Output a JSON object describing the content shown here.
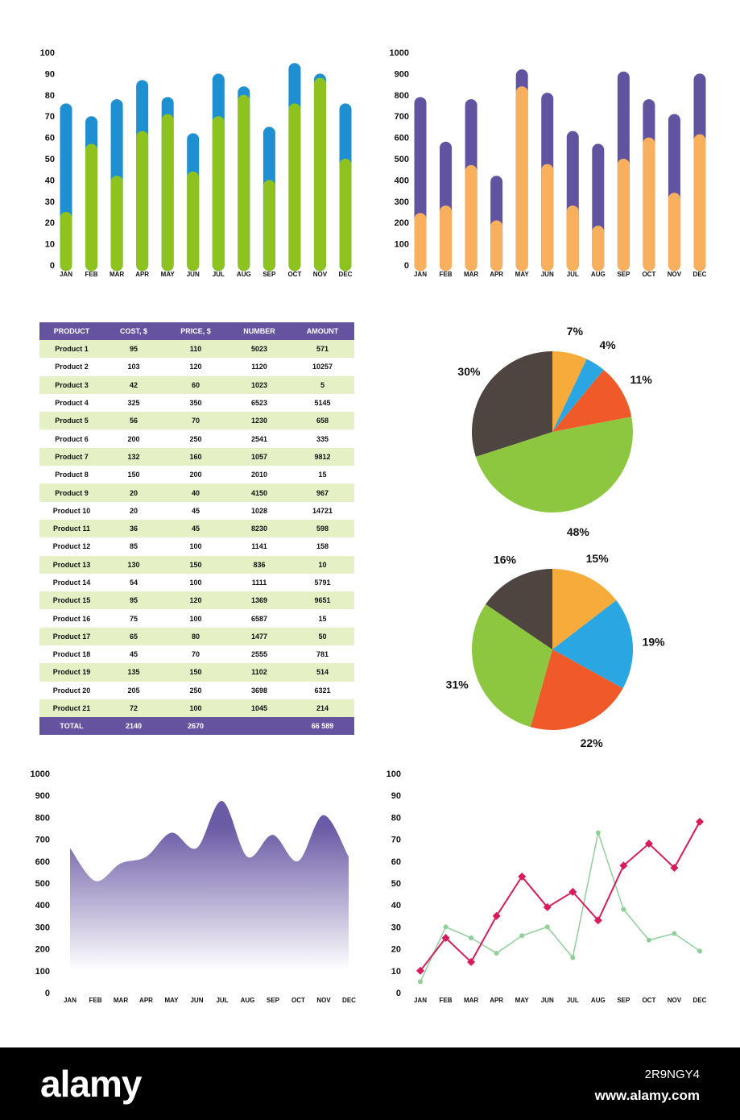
{
  "chart_data": [
    {
      "id": "bar1",
      "type": "bar",
      "stacked": "overlay",
      "categories": [
        "JAN",
        "FEB",
        "MAR",
        "APR",
        "MAY",
        "JUN",
        "JUL",
        "AUG",
        "SEP",
        "OCT",
        "NOV",
        "DEC"
      ],
      "series": [
        {
          "color": "#1e8fd1",
          "values": [
            76,
            70,
            78,
            87,
            79,
            62,
            90,
            84,
            65,
            95,
            90,
            76
          ]
        },
        {
          "color": "#8dc21f",
          "values": [
            25,
            57,
            42,
            63,
            71,
            44,
            70,
            80,
            40,
            76,
            88,
            50
          ]
        }
      ],
      "yticks": [
        0,
        10,
        20,
        30,
        40,
        50,
        60,
        70,
        80,
        90,
        100
      ],
      "ylim": [
        0,
        100
      ]
    },
    {
      "id": "bar2",
      "type": "bar",
      "stacked": "overlay",
      "categories": [
        "JAN",
        "FEB",
        "MAR",
        "APR",
        "MAY",
        "JUN",
        "JUL",
        "AUG",
        "SEP",
        "OCT",
        "NOV",
        "DEC"
      ],
      "series": [
        {
          "color": "#6153a0",
          "values": [
            790,
            580,
            780,
            420,
            920,
            810,
            630,
            570,
            910,
            780,
            710,
            900
          ]
        },
        {
          "color": "#f9b05d",
          "values": [
            245,
            280,
            470,
            210,
            840,
            475,
            280,
            185,
            500,
            600,
            340,
            615
          ]
        }
      ],
      "yticks": [
        0,
        100,
        200,
        300,
        400,
        500,
        600,
        700,
        800,
        900,
        1000
      ],
      "ylim": [
        0,
        1000
      ]
    },
    {
      "id": "table",
      "type": "table",
      "columns": [
        "PRODUCT",
        "COST, $",
        "PRICE, $",
        "NUMBER",
        "AMOUNT"
      ],
      "rows": [
        [
          "Product 1",
          "95",
          "110",
          "5023",
          "571"
        ],
        [
          "Product 2",
          "103",
          "120",
          "1120",
          "10257"
        ],
        [
          "Product 3",
          "42",
          "60",
          "1023",
          "5"
        ],
        [
          "Product 4",
          "325",
          "350",
          "6523",
          "5145"
        ],
        [
          "Product 5",
          "56",
          "70",
          "1230",
          "658"
        ],
        [
          "Product 6",
          "200",
          "250",
          "2541",
          "335"
        ],
        [
          "Product 7",
          "132",
          "160",
          "1057",
          "9812"
        ],
        [
          "Product 8",
          "150",
          "200",
          "2010",
          "15"
        ],
        [
          "Product 9",
          "20",
          "40",
          "4150",
          "967"
        ],
        [
          "Product 10",
          "20",
          "45",
          "1028",
          "14721"
        ],
        [
          "Product 11",
          "36",
          "45",
          "8230",
          "598"
        ],
        [
          "Product 12",
          "85",
          "100",
          "1141",
          "158"
        ],
        [
          "Product 13",
          "130",
          "150",
          "836",
          "10"
        ],
        [
          "Product 14",
          "54",
          "100",
          "1111",
          "5791"
        ],
        [
          "Product 15",
          "95",
          "120",
          "1369",
          "9651"
        ],
        [
          "Product 16",
          "75",
          "100",
          "6587",
          "15"
        ],
        [
          "Product 17",
          "65",
          "80",
          "1477",
          "50"
        ],
        [
          "Product 18",
          "45",
          "70",
          "2555",
          "781"
        ],
        [
          "Product 19",
          "135",
          "150",
          "1102",
          "514"
        ],
        [
          "Product 20",
          "205",
          "250",
          "3698",
          "6321"
        ],
        [
          "Product 21",
          "72",
          "100",
          "1045",
          "214"
        ]
      ],
      "total": [
        "TOTAL",
        "2140",
        "2670",
        "",
        "66 589"
      ]
    },
    {
      "id": "pie1",
      "type": "pie",
      "slices": [
        {
          "label": "7%",
          "value": 7,
          "color": "#f7ab3b"
        },
        {
          "label": "4%",
          "value": 4,
          "color": "#2aa6e2"
        },
        {
          "label": "11%",
          "value": 11,
          "color": "#f05a28"
        },
        {
          "label": "48%",
          "value": 48,
          "color": "#8dc63f"
        },
        {
          "label": "30%",
          "value": 30,
          "color": "#4e4440"
        }
      ]
    },
    {
      "id": "pie2",
      "type": "pie",
      "slices": [
        {
          "label": "15%",
          "value": 15,
          "color": "#f7ab3b"
        },
        {
          "label": "19%",
          "value": 19,
          "color": "#2aa6e2"
        },
        {
          "label": "22%",
          "value": 22,
          "color": "#f05a28"
        },
        {
          "label": "31%",
          "value": 31,
          "color": "#8dc63f"
        },
        {
          "label": "16%",
          "value": 16,
          "color": "#4e4440"
        }
      ]
    },
    {
      "id": "area",
      "type": "area",
      "categories": [
        "JAN",
        "FEB",
        "MAR",
        "APR",
        "MAY",
        "JUN",
        "JUL",
        "AUG",
        "SEP",
        "OCT",
        "NOV",
        "DEC"
      ],
      "values": [
        660,
        510,
        590,
        620,
        730,
        660,
        875,
        620,
        720,
        600,
        810,
        620
      ],
      "color": "#6b5aa5",
      "yticks": [
        0,
        100,
        200,
        300,
        400,
        500,
        600,
        700,
        800,
        900,
        1000
      ],
      "ylim": [
        0,
        1000
      ]
    },
    {
      "id": "line",
      "type": "line",
      "categories": [
        "JAN",
        "FEB",
        "MAR",
        "APR",
        "MAY",
        "JUN",
        "JUL",
        "AUG",
        "SEP",
        "OCT",
        "NOV",
        "DEC"
      ],
      "series": [
        {
          "color": "#d81b5b",
          "marker": "diamond",
          "values": [
            10,
            25,
            14,
            35,
            53,
            39,
            46,
            33,
            58,
            68,
            57,
            78
          ]
        },
        {
          "color": "#8fcf9a",
          "marker": "circle",
          "values": [
            5,
            30,
            25,
            18,
            26,
            30,
            16,
            73,
            38,
            24,
            27,
            19
          ]
        }
      ],
      "yticks": [
        0,
        10,
        20,
        30,
        40,
        50,
        60,
        70,
        80,
        90,
        100
      ],
      "ylim": [
        0,
        100
      ]
    }
  ],
  "footer": {
    "logo": "alamy",
    "code": "2R9NGY4",
    "url": "www.alamy.com"
  }
}
